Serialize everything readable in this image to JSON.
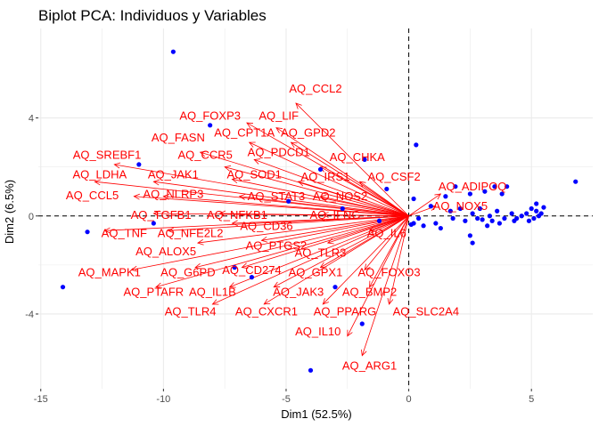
{
  "chart_data": {
    "type": "scatter",
    "title": "Biplot PCA: Individuos y Variables",
    "xlabel": "Dim1 (52.5%)",
    "ylabel": "Dim2 (6.5%)",
    "xlim": [
      -15.1,
      7.5
    ],
    "ylim": [
      -7.05,
      7.65
    ],
    "x_ticks": [
      -15,
      -10,
      -5,
      0,
      5
    ],
    "y_ticks": [
      -4,
      0,
      4
    ],
    "grid": true,
    "reference_lines": {
      "x": 0,
      "y": 0
    },
    "colors": {
      "points": "#0000ff",
      "variables": "#ff0000",
      "grid": "#ebebeb",
      "reference": "#000000"
    },
    "individuals": [
      {
        "x": -9.6,
        "y": 6.7
      },
      {
        "x": -14.1,
        "y": -2.9
      },
      {
        "x": -13.1,
        "y": -0.65
      },
      {
        "x": -10.4,
        "y": -0.3
      },
      {
        "x": -11.0,
        "y": 2.1
      },
      {
        "x": -8.1,
        "y": 3.7
      },
      {
        "x": -4.0,
        "y": -6.3
      },
      {
        "x": -1.9,
        "y": -4.4
      },
      {
        "x": -3.0,
        "y": -2.9
      },
      {
        "x": -1.8,
        "y": 2.3
      },
      {
        "x": -3.6,
        "y": 1.9
      },
      {
        "x": -6.4,
        "y": -2.5
      },
      {
        "x": -7.1,
        "y": -2.1
      },
      {
        "x": -4.9,
        "y": 0.6
      },
      {
        "x": -2.7,
        "y": 0.3
      },
      {
        "x": -1.2,
        "y": -0.2
      },
      {
        "x": -0.9,
        "y": 1.1
      },
      {
        "x": 0.3,
        "y": 2.9
      },
      {
        "x": 0.2,
        "y": 0.7
      },
      {
        "x": 0.6,
        "y": -0.4
      },
      {
        "x": 0.4,
        "y": -0.1
      },
      {
        "x": 0.9,
        "y": 0.4
      },
      {
        "x": 1.1,
        "y": -0.3
      },
      {
        "x": 1.3,
        "y": -0.5
      },
      {
        "x": 1.5,
        "y": 0.8
      },
      {
        "x": 1.7,
        "y": 0.2
      },
      {
        "x": 1.8,
        "y": -0.1
      },
      {
        "x": 1.9,
        "y": 1.2
      },
      {
        "x": 2.1,
        "y": 0.3
      },
      {
        "x": 2.3,
        "y": -0.2
      },
      {
        "x": 2.5,
        "y": 0.9
      },
      {
        "x": 2.6,
        "y": 0.1
      },
      {
        "x": 2.8,
        "y": -0.1
      },
      {
        "x": 2.9,
        "y": 0.3
      },
      {
        "x": 3.1,
        "y": 1.0
      },
      {
        "x": 3.2,
        "y": -0.4
      },
      {
        "x": 3.3,
        "y": 0.0
      },
      {
        "x": 3.4,
        "y": -0.2
      },
      {
        "x": 3.5,
        "y": 1.2
      },
      {
        "x": 3.6,
        "y": 0.2
      },
      {
        "x": 3.7,
        "y": -0.3
      },
      {
        "x": 3.8,
        "y": 0.9
      },
      {
        "x": 3.9,
        "y": -0.1
      },
      {
        "x": 4.0,
        "y": 1.2
      },
      {
        "x": 4.2,
        "y": 0.1
      },
      {
        "x": 4.3,
        "y": -0.2
      },
      {
        "x": 4.4,
        "y": -0.1
      },
      {
        "x": 4.6,
        "y": 0.0
      },
      {
        "x": 4.8,
        "y": 0.1
      },
      {
        "x": 5.0,
        "y": 0.3
      },
      {
        "x": 5.1,
        "y": -0.1
      },
      {
        "x": 5.2,
        "y": 0.2
      },
      {
        "x": 5.3,
        "y": 0.0
      },
      {
        "x": 5.5,
        "y": 0.35
      },
      {
        "x": 5.2,
        "y": 0.5
      },
      {
        "x": 6.8,
        "y": 1.4
      },
      {
        "x": 2.5,
        "y": -0.8
      },
      {
        "x": 2.6,
        "y": -1.1
      },
      {
        "x": 3.0,
        "y": -0.15
      },
      {
        "x": 4.9,
        "y": -0.2
      },
      {
        "x": 5.4,
        "y": 0.1
      },
      {
        "x": 0.2,
        "y": -0.3
      },
      {
        "x": 0.1,
        "y": -0.35
      }
    ],
    "variables": [
      {
        "name": "AQ_CCL2",
        "x": -4.6,
        "y": 4.6,
        "label_x": -3.8,
        "label_y": 5.2
      },
      {
        "name": "AQ_FOXP3",
        "x": -6.6,
        "y": 3.8,
        "label_x": -8.1,
        "label_y": 4.1
      },
      {
        "name": "AQ_LIF",
        "x": -5.4,
        "y": 3.6,
        "label_x": -5.3,
        "label_y": 4.1
      },
      {
        "name": "AQ_FASN",
        "x": -8.5,
        "y": 2.6,
        "label_x": -9.4,
        "label_y": 3.2
      },
      {
        "name": "AQ_CPT1A",
        "x": -6.5,
        "y": 3.0,
        "label_x": -6.7,
        "label_y": 3.4
      },
      {
        "name": "AQ_GPD2",
        "x": -4.8,
        "y": 3.0,
        "label_x": -4.1,
        "label_y": 3.4
      },
      {
        "name": "AQ_PDCD1",
        "x": -6.3,
        "y": 2.3,
        "label_x": -5.3,
        "label_y": 2.6
      },
      {
        "name": "AQ_SREBF1",
        "x": -12.0,
        "y": 2.1,
        "label_x": -12.3,
        "label_y": 2.5
      },
      {
        "name": "AQ_CCR5",
        "x": -7.5,
        "y": 2.0,
        "label_x": -8.3,
        "label_y": 2.5
      },
      {
        "name": "AQ_CHKA",
        "x": -3.6,
        "y": 2.0,
        "label_x": -2.1,
        "label_y": 2.4
      },
      {
        "name": "AQ_LDHA",
        "x": -12.8,
        "y": 1.4,
        "label_x": -12.6,
        "label_y": 1.7
      },
      {
        "name": "AQ_JAK1",
        "x": -10.4,
        "y": 1.4,
        "label_x": -9.6,
        "label_y": 1.7
      },
      {
        "name": "AQ_SOD1",
        "x": -7.2,
        "y": 1.5,
        "label_x": -6.3,
        "label_y": 1.7
      },
      {
        "name": "AQ_IRS1",
        "x": -4.5,
        "y": 1.4,
        "label_x": -3.4,
        "label_y": 1.6
      },
      {
        "name": "AQ_CSF2",
        "x": -2.0,
        "y": 1.4,
        "label_x": -0.6,
        "label_y": 1.6
      },
      {
        "name": "AQ_ADIPOQ",
        "x": 1.3,
        "y": 0.9,
        "label_x": 2.6,
        "label_y": 1.2
      },
      {
        "name": "AQ_CCL5",
        "x": -11.2,
        "y": 0.8,
        "label_x": -12.9,
        "label_y": 0.85
      },
      {
        "name": "AQ_NLRP3",
        "x": -10.0,
        "y": 0.8,
        "label_x": -9.6,
        "label_y": 0.9
      },
      {
        "name": "AQ_STAT3",
        "x": -6.9,
        "y": 0.8,
        "label_x": -5.4,
        "label_y": 0.8
      },
      {
        "name": "AQ_NOS2",
        "x": -3.6,
        "y": 0.8,
        "label_x": -2.8,
        "label_y": 0.8
      },
      {
        "name": "AQ_NOX5",
        "x": 1.1,
        "y": 0.4,
        "label_x": 2.1,
        "label_y": 0.4
      },
      {
        "name": "AQ_TGFB1",
        "x": -10.4,
        "y": 0.1,
        "label_x": -10.1,
        "label_y": 0.05
      },
      {
        "name": "AQ_NFKB1",
        "x": -7.7,
        "y": 0.1,
        "label_x": -7.0,
        "label_y": 0.05
      },
      {
        "name": "AQ_IFNG",
        "x": -3.5,
        "y": 0.05,
        "label_x": -3.0,
        "label_y": 0.05
      },
      {
        "name": "AQ_CD36",
        "x": -7.2,
        "y": -0.3,
        "label_x": -5.8,
        "label_y": -0.4
      },
      {
        "name": "AQ_TNF",
        "x": -12.4,
        "y": -0.6,
        "label_x": -11.6,
        "label_y": -0.7
      },
      {
        "name": "AQ_NFE2L2",
        "x": -9.8,
        "y": -0.6,
        "label_x": -8.9,
        "label_y": -0.7
      },
      {
        "name": "AQ_IL6",
        "x": -1.6,
        "y": -0.6,
        "label_x": -0.9,
        "label_y": -0.7
      },
      {
        "name": "AQ_ALOX5",
        "x": -8.6,
        "y": -1.1,
        "label_x": -9.9,
        "label_y": -1.45
      },
      {
        "name": "AQ_PTGS2",
        "x": -6.0,
        "y": -1.0,
        "label_x": -5.4,
        "label_y": -1.2
      },
      {
        "name": "AQ_TLR3",
        "x": -3.3,
        "y": -1.1,
        "label_x": -3.6,
        "label_y": -1.5
      },
      {
        "name": "AQ_MAPK1",
        "x": -11.3,
        "y": -2.2,
        "label_x": -12.2,
        "label_y": -2.3
      },
      {
        "name": "AQ_G6PD",
        "x": -8.7,
        "y": -2.1,
        "label_x": -9.0,
        "label_y": -2.3
      },
      {
        "name": "AQ_CD274",
        "x": -6.8,
        "y": -2.1,
        "label_x": -6.4,
        "label_y": -2.2
      },
      {
        "name": "AQ_GPX1",
        "x": -3.6,
        "y": -2.1,
        "label_x": -3.8,
        "label_y": -2.3
      },
      {
        "name": "AQ_FOXO3",
        "x": -1.8,
        "y": -2.2,
        "label_x": -0.8,
        "label_y": -2.3
      },
      {
        "name": "AQ_PTAFR",
        "x": -10.3,
        "y": -2.9,
        "label_x": -10.4,
        "label_y": -3.1
      },
      {
        "name": "AQ_IL1B",
        "x": -7.3,
        "y": -2.9,
        "label_x": -8.0,
        "label_y": -3.1
      },
      {
        "name": "AQ_JAK3",
        "x": -5.5,
        "y": -2.9,
        "label_x": -4.5,
        "label_y": -3.1
      },
      {
        "name": "AQ_BMP2",
        "x": -1.6,
        "y": -2.9,
        "label_x": -1.6,
        "label_y": -3.1
      },
      {
        "name": "AQ_TLR4",
        "x": -8.0,
        "y": -3.6,
        "label_x": -8.9,
        "label_y": -3.9
      },
      {
        "name": "AQ_CXCR1",
        "x": -5.9,
        "y": -3.6,
        "label_x": -5.8,
        "label_y": -3.9
      },
      {
        "name": "AQ_PPARG",
        "x": -3.5,
        "y": -3.6,
        "label_x": -2.6,
        "label_y": -3.9
      },
      {
        "name": "AQ_SLC2A4",
        "x": -0.8,
        "y": -3.6,
        "label_x": 0.7,
        "label_y": -3.9
      },
      {
        "name": "AQ_IL10",
        "x": -2.5,
        "y": -4.9,
        "label_x": -3.7,
        "label_y": -4.7
      },
      {
        "name": "AQ_ARG1",
        "x": -1.9,
        "y": -5.7,
        "label_x": -1.6,
        "label_y": -6.1
      }
    ]
  }
}
